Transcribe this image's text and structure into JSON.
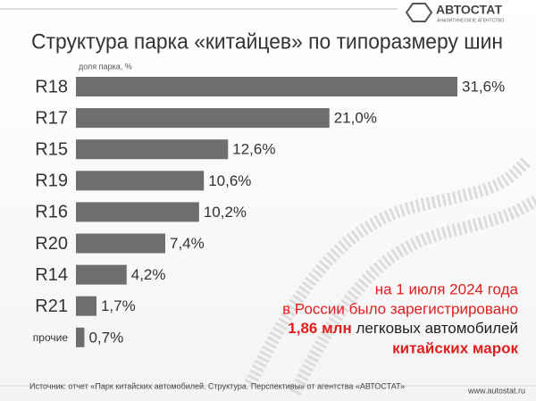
{
  "chart_data": {
    "type": "bar",
    "orientation": "horizontal",
    "title": "Структура парка «китайцев» по типоразмеру шин",
    "axis_label": "доля парка, %",
    "categories": [
      "R18",
      "R17",
      "R15",
      "R19",
      "R16",
      "R20",
      "R14",
      "R21",
      "прочие"
    ],
    "values": [
      31.6,
      21.0,
      12.6,
      10.6,
      10.2,
      7.4,
      4.2,
      1.7,
      0.7
    ],
    "value_labels": [
      "31,6%",
      "21,0%",
      "12,6%",
      "10,6%",
      "10,2%",
      "7,4%",
      "4,2%",
      "1,7%",
      "0,7%"
    ],
    "color": "#6e6e6e",
    "annotation": [
      "на 1 июля 2024 года",
      "в России было зарегистрировано",
      "1,86 млн",
      "легковых автомобилей",
      "китайских марок"
    ],
    "source": "Источник: отчет «Парк китайских автомобилей. Структура. Перспективы» от агентства «АВТОСТАТ»",
    "logo": "АВТОСТАТ",
    "logo_subtitle": "АНАЛИТИЧЕСКОЕ АГЕНТСТВО",
    "url": "www.autostat.ru"
  }
}
